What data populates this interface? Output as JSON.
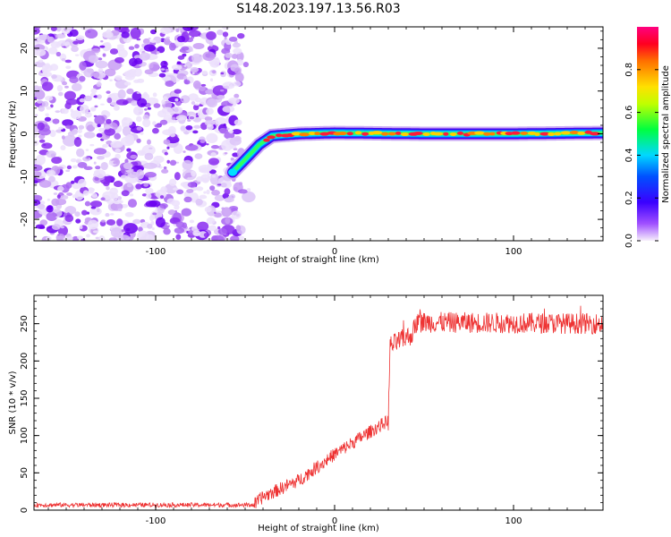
{
  "figure_title": "S148.2023.197.13.56.R03",
  "chart_data": [
    {
      "type": "heatmap",
      "xlabel": "Height of straight line (km)",
      "ylabel": "Frequency (Hz)",
      "xlim": [
        -168,
        150
      ],
      "ylim": [
        -25,
        25
      ],
      "x_ticks": [
        -100,
        0,
        100
      ],
      "x_tick_labels": [
        "-100",
        "0",
        "100"
      ],
      "y_ticks": [
        -20,
        -10,
        0,
        10,
        20
      ],
      "y_tick_labels": [
        "-20",
        "-10",
        "0",
        "10",
        "20"
      ],
      "colorbar": {
        "label": "Normalized spectral amplitude",
        "range": [
          0,
          1
        ],
        "ticks": [
          0.0,
          0.2,
          0.4,
          0.6,
          0.8
        ],
        "tick_labels": [
          "0.0",
          "0.2",
          "0.4",
          "0.6",
          "0.8"
        ],
        "colormap": "rainbow (white-violet-blue-cyan-green-yellow-orange-red-magenta)"
      },
      "features": {
        "noise_region_x_range": [
          -168,
          -52
        ],
        "signal_start_x": -57,
        "signal_track": [
          {
            "x": -57,
            "freq": -9
          },
          {
            "x": -50,
            "freq": -6
          },
          {
            "x": -42,
            "freq": -2.5
          },
          {
            "x": -35,
            "freq": -0.5
          },
          {
            "x": -20,
            "freq": 0
          },
          {
            "x": 0,
            "freq": 0.2
          },
          {
            "x": 50,
            "freq": 0
          },
          {
            "x": 100,
            "freq": 0
          },
          {
            "x": 150,
            "freq": 0.2
          }
        ]
      },
      "grid": false
    },
    {
      "type": "line",
      "xlabel": "Height of straight line (km)",
      "ylabel": "SNR (10 * v/v)",
      "xlim": [
        -168,
        150
      ],
      "ylim": [
        0,
        288
      ],
      "x_ticks": [
        -100,
        0,
        100
      ],
      "x_tick_labels": [
        "-100",
        "0",
        "100"
      ],
      "y_ticks": [
        0,
        50,
        100,
        150,
        200,
        250
      ],
      "y_tick_labels": [
        "0",
        "50",
        "100",
        "150",
        "200",
        "250"
      ],
      "series": [
        {
          "color": "#ee3333",
          "profile": [
            {
              "x": -168,
              "y": 7
            },
            {
              "x": -45,
              "y": 7
            },
            {
              "x": -40,
              "y": 18
            },
            {
              "x": -20,
              "y": 40
            },
            {
              "x": 0,
              "y": 75
            },
            {
              "x": 15,
              "y": 98
            },
            {
              "x": 30,
              "y": 120
            },
            {
              "x": 31,
              "y": 220
            },
            {
              "x": 43,
              "y": 235
            },
            {
              "x": 46,
              "y": 252
            },
            {
              "x": 150,
              "y": 250
            }
          ],
          "noise_amplitude": "approximately ±5 below 30 km, ±15 above"
        }
      ],
      "grid": false
    }
  ]
}
